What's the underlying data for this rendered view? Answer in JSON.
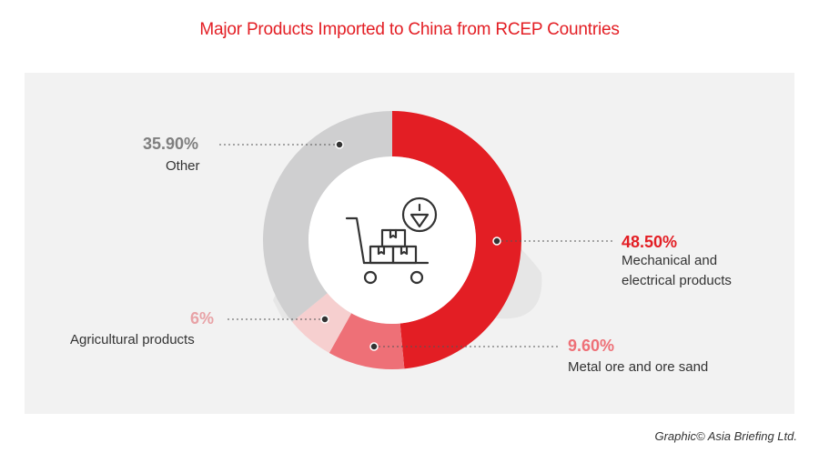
{
  "title": "Major Products Imported to China from RCEP Countries",
  "credit": "Graphic© Asia Briefing Ltd.",
  "chart_data": {
    "type": "pie",
    "variant": "donut",
    "title": "Major Products Imported to China from RCEP Countries",
    "categories": [
      "Mechanical and electrical products",
      "Metal ore and ore sand",
      "Agricultural products",
      "Other"
    ],
    "values": [
      48.5,
      9.6,
      6.0,
      35.9
    ],
    "value_labels": [
      "48.50%",
      "9.60%",
      "6%",
      "35.90%"
    ],
    "colors": [
      "#e31e24",
      "#ee7077",
      "#f6cfcf",
      "#cfcfd0"
    ],
    "label_colors": [
      "#e31e24",
      "#ee7077",
      "#e8a2a6",
      "#7f7f7f"
    ],
    "label_lines": [
      [
        "Mechanical and",
        "electrical products"
      ],
      [
        "Metal ore and ore sand"
      ],
      [
        "Agricultural products"
      ],
      [
        "Other"
      ]
    ],
    "center_icon": "cart-with-boxes-import-icon"
  }
}
